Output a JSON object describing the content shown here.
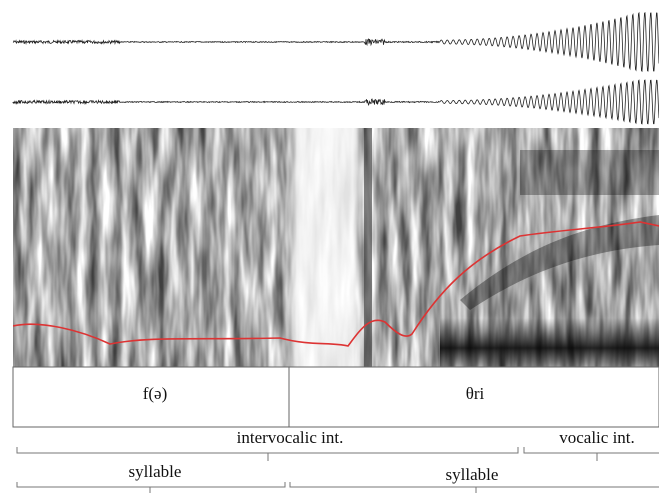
{
  "tiers": [
    {
      "label": "f(ə)"
    },
    {
      "label": "θri"
    }
  ],
  "brackets": [
    {
      "label": "intervocalic int."
    },
    {
      "label": "vocalic int."
    },
    {
      "label": "syllable"
    },
    {
      "label": "syllable"
    }
  ]
}
